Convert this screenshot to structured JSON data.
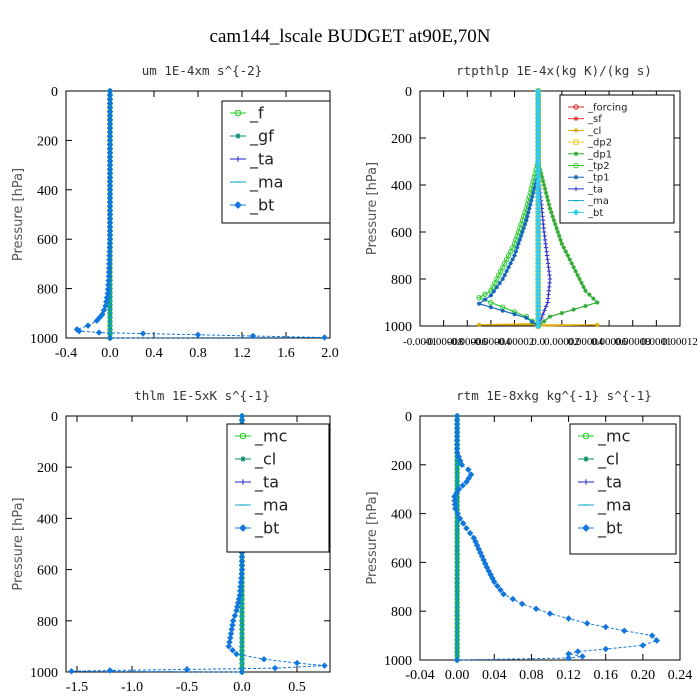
{
  "figure_title": "cam144_lscale  BUDGET at90E,70N",
  "chart_data": [
    {
      "type": "line",
      "title": "um  1E-4xm s^{-2}",
      "ylabel": "Pressure [hPa]",
      "xlabel": "",
      "xlim": [
        -0.4,
        2.0
      ],
      "ylim": [
        1000,
        0
      ],
      "xticks": [
        -0.4,
        0.0,
        0.4,
        0.8,
        1.2,
        1.6,
        2.0
      ],
      "xtick_labels": [
        "-0.4",
        "0.0",
        "0.4",
        "0.8",
        "1.2",
        "1.6",
        "2.0"
      ],
      "yticks": [
        0,
        200,
        400,
        600,
        800,
        1000
      ],
      "ytick_labels": [
        "0",
        "200",
        "400",
        "600",
        "800",
        "1000"
      ],
      "legend_placement": "top-right",
      "series": [
        {
          "name": "_f",
          "color": "#22cc22",
          "marker": "circle",
          "points": [
            [
              0,
              0
            ],
            [
              0,
              1000
            ]
          ]
        },
        {
          "name": "_gf",
          "color": "#008866",
          "marker": "star",
          "points": [
            [
              0,
              0
            ],
            [
              0,
              1000
            ]
          ]
        },
        {
          "name": "_ta",
          "color": "#2222cc",
          "marker": "plus",
          "points": [
            [
              0,
              0
            ],
            [
              0,
              1000
            ]
          ]
        },
        {
          "name": "_ma",
          "color": "#11aacc",
          "marker": "dash",
          "points": [
            [
              0,
              0
            ],
            [
              0,
              1000
            ]
          ]
        },
        {
          "name": "_bt",
          "color": "#1177dd",
          "marker": "diamond",
          "points": [
            [
              0,
              0
            ],
            [
              0,
              600
            ],
            [
              -0.01,
              750
            ],
            [
              -0.02,
              820
            ],
            [
              -0.04,
              870
            ],
            [
              -0.07,
              905
            ],
            [
              -0.12,
              930
            ],
            [
              -0.2,
              950
            ],
            [
              -0.3,
              965
            ],
            [
              -0.28,
              972
            ],
            [
              -0.1,
              978
            ],
            [
              0.3,
              982
            ],
            [
              0.8,
              987
            ],
            [
              1.3,
              992
            ],
            [
              1.95,
              998
            ],
            [
              0,
              1000
            ]
          ]
        }
      ]
    },
    {
      "type": "line",
      "title": "rtpthlp  1E-4x(kg K)/(kg s)",
      "ylabel": "Pressure [hPa]",
      "xlabel": "",
      "xlim": [
        -0.0001,
        0.00012
      ],
      "ylim": [
        1000,
        0
      ],
      "xticks": [
        -0.0001,
        -8e-05,
        -6e-05,
        -4e-05,
        -2e-05,
        0.0,
        2e-05,
        4e-05,
        6e-05,
        8e-05,
        0.0001,
        0.00012
      ],
      "xtick_labels": [
        "-0.0001",
        "-0.00008",
        "-0.00006",
        "-0.00004",
        "-0.00002",
        "0.0",
        "0.00002",
        "0.00004",
        "0.00006",
        "0.00008",
        "0.0001",
        "0.00012"
      ],
      "yticks": [
        0,
        200,
        400,
        600,
        800,
        1000
      ],
      "ytick_labels": [
        "0",
        "200",
        "400",
        "600",
        "800",
        "1000"
      ],
      "legend_placement": "top-right",
      "series": [
        {
          "name": "_forcing",
          "color": "#dd2222",
          "marker": "circle",
          "points": [
            [
              0,
              0
            ],
            [
              0,
              1000
            ]
          ]
        },
        {
          "name": "_sf",
          "color": "#ee3333",
          "marker": "star",
          "points": [
            [
              0,
              0
            ],
            [
              0,
              1000
            ]
          ]
        },
        {
          "name": "_cl",
          "color": "#ddaa00",
          "marker": "star",
          "points": [
            [
              0,
              0
            ],
            [
              0,
              990
            ],
            [
              -5e-05,
              995
            ],
            [
              5e-05,
              995
            ],
            [
              0,
              1000
            ]
          ]
        },
        {
          "name": "_dp2",
          "color": "#eecc33",
          "marker": "square",
          "points": [
            [
              0,
              0
            ],
            [
              0,
              1000
            ]
          ]
        },
        {
          "name": "_dp1",
          "color": "#33aa33",
          "marker": "star",
          "points": [
            [
              0,
              0
            ],
            [
              0,
              300
            ],
            [
              1e-05,
              500
            ],
            [
              2e-05,
              650
            ],
            [
              3e-05,
              750
            ],
            [
              4e-05,
              850
            ],
            [
              5e-05,
              900
            ],
            [
              3e-05,
              930
            ],
            [
              1e-05,
              960
            ],
            [
              0,
              1000
            ]
          ]
        },
        {
          "name": "_tp2",
          "color": "#33cc33",
          "marker": "circle",
          "points": [
            [
              0,
              0
            ],
            [
              0,
              300
            ],
            [
              -1e-05,
              500
            ],
            [
              -2e-05,
              650
            ],
            [
              -3e-05,
              750
            ],
            [
              -4e-05,
              850
            ],
            [
              -5e-05,
              880
            ],
            [
              -3e-05,
              920
            ],
            [
              -1e-05,
              960
            ],
            [
              0,
              1000
            ]
          ]
        },
        {
          "name": "_tp1",
          "color": "#1166bb",
          "marker": "star",
          "points": [
            [
              0,
              0
            ],
            [
              0,
              350
            ],
            [
              -1e-05,
              550
            ],
            [
              -2e-05,
              700
            ],
            [
              -3e-05,
              800
            ],
            [
              -4e-05,
              870
            ],
            [
              -5e-05,
              905
            ],
            [
              -3e-05,
              935
            ],
            [
              -1e-05,
              965
            ],
            [
              0,
              1000
            ]
          ]
        },
        {
          "name": "_ta",
          "color": "#3333cc",
          "marker": "plus",
          "points": [
            [
              0,
              0
            ],
            [
              0,
              350
            ],
            [
              5e-06,
              600
            ],
            [
              1e-05,
              800
            ],
            [
              8e-06,
              900
            ],
            [
              0,
              1000
            ]
          ]
        },
        {
          "name": "_ma",
          "color": "#11aacc",
          "marker": "dash",
          "points": [
            [
              0,
              0
            ],
            [
              0,
              1000
            ]
          ]
        },
        {
          "name": "_bt",
          "color": "#33ccee",
          "marker": "diamond",
          "points": [
            [
              0,
              0
            ],
            [
              0,
              1000
            ]
          ]
        }
      ]
    },
    {
      "type": "line",
      "title": "thlm  1E-5xK s^{-1}",
      "ylabel": "Pressure [hPa]",
      "xlabel": "",
      "xlim": [
        -1.6,
        0.8
      ],
      "ylim": [
        1000,
        0
      ],
      "xticks": [
        -1.5,
        -1.0,
        -0.5,
        0.0,
        0.5
      ],
      "xtick_labels": [
        "-1.5",
        "-1.0",
        "-0.5",
        "0.0",
        "0.5"
      ],
      "yticks": [
        0,
        200,
        400,
        600,
        800,
        1000
      ],
      "ytick_labels": [
        "0",
        "200",
        "400",
        "600",
        "800",
        "1000"
      ],
      "legend_placement": "top-right",
      "series": [
        {
          "name": "_mc",
          "color": "#22cc22",
          "marker": "circle",
          "points": [
            [
              0,
              0
            ],
            [
              0,
              1000
            ]
          ]
        },
        {
          "name": "_cl",
          "color": "#008866",
          "marker": "star",
          "points": [
            [
              0,
              0
            ],
            [
              0,
              1000
            ]
          ]
        },
        {
          "name": "_ta",
          "color": "#2222cc",
          "marker": "plus",
          "points": [
            [
              0,
              0
            ],
            [
              0,
              1000
            ]
          ]
        },
        {
          "name": "_ma",
          "color": "#11aacc",
          "marker": "dash",
          "points": [
            [
              0,
              0
            ],
            [
              0,
              1000
            ]
          ]
        },
        {
          "name": "_bt",
          "color": "#1177dd",
          "marker": "diamond",
          "points": [
            [
              0,
              0
            ],
            [
              0,
              600
            ],
            [
              -0.02,
              700
            ],
            [
              -0.05,
              760
            ],
            [
              -0.08,
              800
            ],
            [
              -0.1,
              850
            ],
            [
              -0.12,
              900
            ],
            [
              -0.05,
              930
            ],
            [
              0.2,
              950
            ],
            [
              0.5,
              965
            ],
            [
              0.75,
              975
            ],
            [
              0.3,
              985
            ],
            [
              -0.5,
              990
            ],
            [
              -1.2,
              994
            ],
            [
              -1.55,
              997
            ],
            [
              0,
              1000
            ]
          ]
        }
      ]
    },
    {
      "type": "line",
      "title": "rtm  1E-8xkg kg^{-1} s^{-1}",
      "ylabel": "Pressure [hPa]",
      "xlabel": "",
      "xlim": [
        -0.04,
        0.24
      ],
      "ylim": [
        1000,
        0
      ],
      "xticks": [
        -0.04,
        0.0,
        0.04,
        0.08,
        0.12,
        0.16,
        0.2,
        0.24
      ],
      "xtick_labels": [
        "-0.04",
        "0.00",
        "0.04",
        "0.08",
        "0.12",
        "0.16",
        "0.20",
        "0.24"
      ],
      "yticks": [
        0,
        200,
        400,
        600,
        800,
        1000
      ],
      "ytick_labels": [
        "0",
        "200",
        "400",
        "600",
        "800",
        "1000"
      ],
      "legend_placement": "top-right",
      "series": [
        {
          "name": "_mc",
          "color": "#22cc22",
          "marker": "circle",
          "points": [
            [
              0,
              0
            ],
            [
              0,
              1000
            ]
          ]
        },
        {
          "name": "_cl",
          "color": "#008866",
          "marker": "star",
          "points": [
            [
              0,
              0
            ],
            [
              0,
              1000
            ]
          ]
        },
        {
          "name": "_ta",
          "color": "#2222cc",
          "marker": "plus",
          "points": [
            [
              0,
              0
            ],
            [
              0,
              1000
            ]
          ]
        },
        {
          "name": "_ma",
          "color": "#11aacc",
          "marker": "dash",
          "points": [
            [
              0,
              0
            ],
            [
              0,
              1000
            ]
          ]
        },
        {
          "name": "_bt",
          "color": "#1177dd",
          "marker": "diamond",
          "points": [
            [
              0,
              0
            ],
            [
              0,
              150
            ],
            [
              0.005,
              200
            ],
            [
              0.012,
              220
            ],
            [
              0.015,
              240
            ],
            [
              0.01,
              270
            ],
            [
              0.002,
              300
            ],
            [
              -0.003,
              330
            ],
            [
              -0.002,
              380
            ],
            [
              0.003,
              420
            ],
            [
              0.01,
              460
            ],
            [
              0.018,
              500
            ],
            [
              0.025,
              560
            ],
            [
              0.032,
              620
            ],
            [
              0.04,
              680
            ],
            [
              0.05,
              730
            ],
            [
              0.07,
              770
            ],
            [
              0.1,
              810
            ],
            [
              0.14,
              850
            ],
            [
              0.18,
              880
            ],
            [
              0.21,
              900
            ],
            [
              0.215,
              920
            ],
            [
              0.2,
              940
            ],
            [
              0.16,
              955
            ],
            [
              0.13,
              965
            ],
            [
              0.12,
              975
            ],
            [
              0.135,
              985
            ],
            [
              0.12,
              992
            ],
            [
              0.0,
              1000
            ]
          ]
        }
      ]
    }
  ]
}
